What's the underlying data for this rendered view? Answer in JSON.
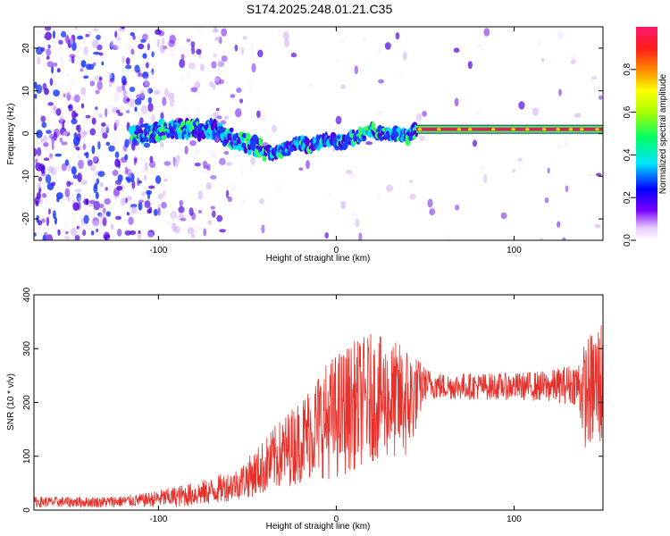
{
  "title": "S174.2025.248.01.21.C35",
  "colors": {
    "snr_line": "#e8302a",
    "frame": "#000000",
    "track_core": "#e0205a"
  },
  "chart_data": [
    {
      "type": "heatmap",
      "name": "spectrogram",
      "xlabel": "Height of straight line (km)",
      "ylabel": "Frequency (Hz)",
      "xlim": [
        -170,
        150
      ],
      "ylim": [
        -25,
        25
      ],
      "x_ticks": [
        -100,
        0,
        100
      ],
      "y_ticks": [
        -20,
        -10,
        0,
        10,
        20
      ],
      "ridge": {
        "x": [
          -110,
          -95,
          -80,
          -70,
          -60,
          -50,
          -45,
          -40,
          -35,
          -30,
          -25,
          -20,
          -15,
          -10,
          -5,
          0,
          5,
          10,
          15,
          20,
          25,
          30,
          35,
          40,
          45,
          150
        ],
        "y": [
          0,
          1,
          1,
          1,
          -1,
          -2,
          -3,
          -4,
          -5,
          -4,
          -3,
          -2,
          -3,
          -2,
          -1,
          -2,
          -2,
          -1,
          0,
          1,
          0,
          0,
          0,
          -1,
          1,
          1
        ]
      },
      "colorbar": {
        "label": "Normalized spectral amplitude",
        "range": [
          0,
          1
        ],
        "ticks": [
          "0.0",
          "0.2",
          "0.4",
          "0.6",
          "0.8"
        ]
      }
    },
    {
      "type": "line",
      "name": "snr",
      "xlabel": "Height of straight line (km)",
      "ylabel": "SNR (10 * v/v)",
      "xlim": [
        -170,
        150
      ],
      "ylim": [
        0,
        400
      ],
      "x_ticks": [
        -100,
        0,
        100
      ],
      "y_ticks": [
        0,
        100,
        200,
        300,
        400
      ],
      "envelope": {
        "x": [
          -170,
          -150,
          -130,
          -110,
          -90,
          -70,
          -55,
          -45,
          -35,
          -20,
          -10,
          0,
          10,
          20,
          30,
          40,
          50,
          60,
          80,
          100,
          120,
          135,
          140,
          150
        ],
        "mean": [
          15,
          15,
          15,
          18,
          25,
          35,
          50,
          70,
          95,
          130,
          160,
          175,
          195,
          210,
          205,
          200,
          235,
          230,
          230,
          230,
          230,
          235,
          215,
          240
        ],
        "amplitude": [
          10,
          10,
          10,
          12,
          20,
          25,
          30,
          45,
          60,
          80,
          100,
          120,
          120,
          120,
          110,
          110,
          30,
          25,
          25,
          25,
          30,
          40,
          100,
          130
        ]
      }
    }
  ]
}
